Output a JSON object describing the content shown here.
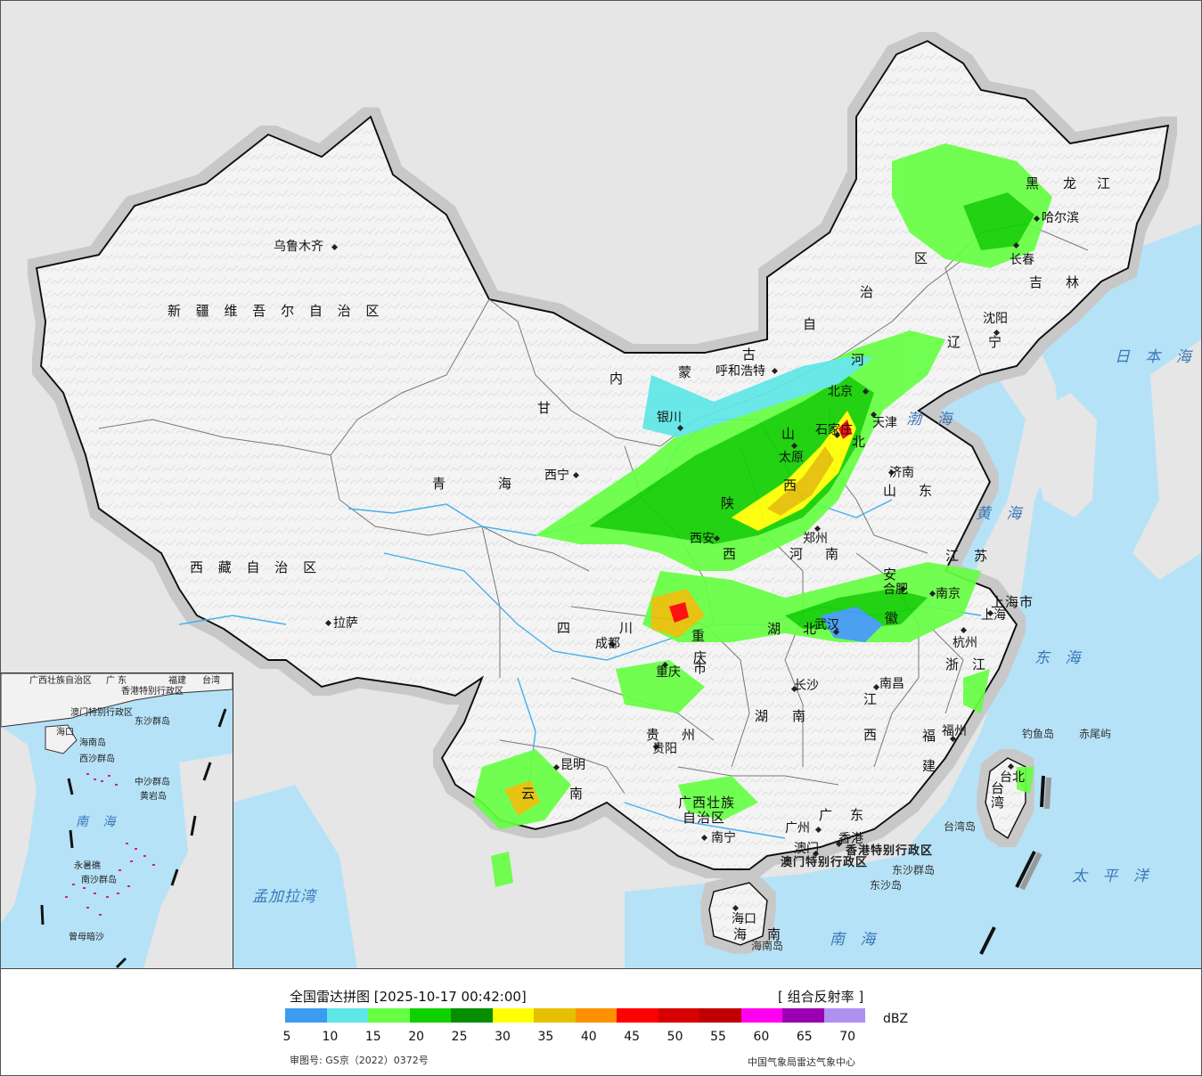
{
  "legend": {
    "title": "全国雷达拼图 [2025-10-17 00:42:00]",
    "product": "[ 组合反射率 ]",
    "unit": "dBZ",
    "approval": "审图号: GS京（2022）0372号",
    "source": "中国气象局雷达气象中心",
    "colors": [
      "#3d9bf0",
      "#5fe6e6",
      "#66ff44",
      "#11d000",
      "#058f00",
      "#ffff00",
      "#e6c000",
      "#ff9000",
      "#ff0000",
      "#d60000",
      "#c00000",
      "#ff00f0",
      "#9800b0",
      "#ae90f0"
    ],
    "ticks": [
      "5",
      "10",
      "15",
      "20",
      "25",
      "30",
      "35",
      "40",
      "45",
      "50",
      "55",
      "60",
      "65",
      "70"
    ]
  },
  "labels": {
    "provinces": [
      "新 疆 维 吾 尔 自 治 区",
      "西 藏 自 治 区",
      "青",
      "海",
      "甘",
      "内",
      "蒙",
      "古",
      "自",
      "治",
      "区",
      "黑",
      "龙",
      "江",
      "吉",
      "林",
      "辽",
      "宁",
      "河",
      "北",
      "山",
      "西",
      "陕",
      "西",
      "河",
      "南",
      "山",
      "东",
      "江",
      "苏",
      "安",
      "徽",
      "湖",
      "北",
      "四",
      "川",
      "重",
      "庆",
      "市",
      "贵",
      "州",
      "云",
      "南",
      "湖",
      "南",
      "江",
      "西",
      "浙",
      "江",
      "福",
      "建",
      "广西壮族",
      "自治区",
      "广",
      "东",
      "海",
      "南",
      "台湾",
      "上海市"
    ],
    "cities": [
      "乌鲁木齐",
      "拉萨",
      "西宁",
      "银川",
      "呼和浩特",
      "北京",
      "天津",
      "石家庄",
      "太原",
      "济南",
      "郑州",
      "西安",
      "南京",
      "合肥",
      "上海",
      "杭州",
      "武汉",
      "成都",
      "重庆",
      "长沙",
      "南昌",
      "福州",
      "台北",
      "贵阳",
      "昆明",
      "南宁",
      "广州",
      "澳门",
      "香港",
      "海口",
      "哈尔滨",
      "长春",
      "沈阳"
    ],
    "seas": [
      "日 本 海",
      "黄 海",
      "东 海",
      "渤 海",
      "太 平 洋",
      "南 海",
      "孟加拉湾",
      "南 海"
    ],
    "islands": [
      "钓鱼岛",
      "赤尾屿",
      "台湾岛",
      "东沙群岛",
      "东沙岛",
      "海南岛"
    ],
    "special": [
      "香港特别行政区",
      "澳门特别行政区"
    ],
    "inset": [
      "广西壮族自治区",
      "广 东",
      "福建",
      "台湾",
      "香港特别行政区",
      "澳门特别行政区",
      "东沙群岛",
      "海口",
      "海南岛",
      "西沙群岛",
      "中沙群岛",
      "黄岩岛",
      "南 海",
      "永暑礁",
      "南沙群岛",
      "曾母暗沙"
    ]
  }
}
